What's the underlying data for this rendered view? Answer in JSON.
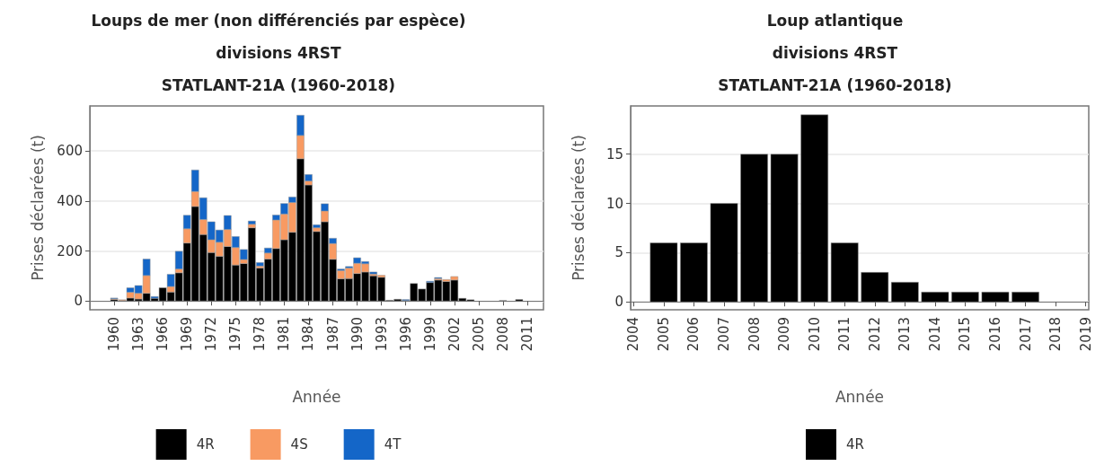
{
  "chart_data": [
    {
      "type": "bar",
      "title": "Loups de mer (non différenciés par espèce)\ndivisions 4RST\nSTATLANT-21A (1960-2018)",
      "xlabel": "Année",
      "ylabel": "Prises déclarées (t)",
      "stacked": true,
      "x": [
        1960,
        1961,
        1962,
        1963,
        1964,
        1965,
        1966,
        1967,
        1968,
        1969,
        1970,
        1971,
        1972,
        1973,
        1974,
        1975,
        1976,
        1977,
        1978,
        1979,
        1980,
        1981,
        1982,
        1983,
        1984,
        1985,
        1986,
        1987,
        1988,
        1989,
        1990,
        1991,
        1992,
        1993,
        1994,
        1995,
        1996,
        1997,
        1998,
        1999,
        2000,
        2001,
        2002,
        2003,
        2004,
        2005,
        2006,
        2007,
        2008,
        2009,
        2010
      ],
      "series": [
        {
          "name": "4R",
          "color": "#000000",
          "values": [
            6,
            2,
            12,
            8,
            31,
            11,
            53,
            36,
            113,
            232,
            378,
            266,
            194,
            179,
            218,
            144,
            150,
            293,
            132,
            168,
            210,
            245,
            275,
            569,
            464,
            278,
            317,
            167,
            89,
            90,
            110,
            116,
            101,
            95,
            3,
            7,
            2,
            70,
            48,
            74,
            84,
            78,
            84,
            11,
            5,
            null,
            null,
            null,
            2,
            null,
            6
          ]
        },
        {
          "name": "4S",
          "color": "#f89a62",
          "values": [
            3,
            3,
            23,
            23,
            71,
            null,
            null,
            22,
            15,
            57,
            60,
            60,
            51,
            56,
            68,
            70,
            16,
            14,
            8,
            24,
            114,
            103,
            119,
            93,
            16,
            15,
            43,
            63,
            33,
            42,
            41,
            33,
            7,
            8,
            null,
            null,
            null,
            null,
            null,
            null,
            6,
            8,
            14,
            null,
            null,
            null,
            null,
            null,
            null,
            null,
            null
          ]
        },
        {
          "name": "4T",
          "color": "#1466c8",
          "values": [
            3,
            null,
            18,
            31,
            66,
            7,
            null,
            49,
            71,
            54,
            86,
            87,
            72,
            49,
            56,
            44,
            40,
            13,
            14,
            20,
            20,
            42,
            22,
            81,
            26,
            12,
            29,
            21,
            6,
            6,
            22,
            9,
            8,
            null,
            null,
            null,
            4,
            null,
            null,
            5,
            4,
            null,
            null,
            null,
            null,
            null,
            null,
            null,
            null,
            null,
            null
          ]
        }
      ],
      "xlim": [
        1957,
        2013
      ],
      "xticks": [
        1960,
        1963,
        1966,
        1969,
        1972,
        1975,
        1978,
        1981,
        1984,
        1987,
        1990,
        1993,
        1996,
        1999,
        2002,
        2005,
        2008,
        2011
      ],
      "ylim": [
        -35,
        780
      ],
      "yticks": [
        0,
        200,
        400,
        600
      ],
      "grid": "y",
      "legend": "bottom"
    },
    {
      "type": "bar",
      "title": "Loup atlantique\ndivisions 4RST\nSTATLANT-21A (1960-2018)",
      "xlabel": "Année",
      "ylabel": "Prises déclarées (t)",
      "x": [
        2005,
        2006,
        2007,
        2008,
        2009,
        2010,
        2011,
        2012,
        2013,
        2014,
        2015,
        2016,
        2017
      ],
      "series": [
        {
          "name": "4R",
          "color": "#000000",
          "values": [
            6,
            6,
            10,
            15,
            15,
            19,
            6,
            3,
            2,
            1,
            1,
            1,
            1
          ]
        }
      ],
      "xlim": [
        2003.9,
        2019.1
      ],
      "xticks": [
        2004,
        2005,
        2006,
        2007,
        2008,
        2009,
        2010,
        2011,
        2012,
        2013,
        2014,
        2015,
        2016,
        2017,
        2018,
        2019
      ],
      "ylim": [
        -0.8,
        19.9
      ],
      "yticks": [
        0,
        5,
        10,
        15
      ],
      "grid": "y",
      "legend": "bottom"
    }
  ]
}
